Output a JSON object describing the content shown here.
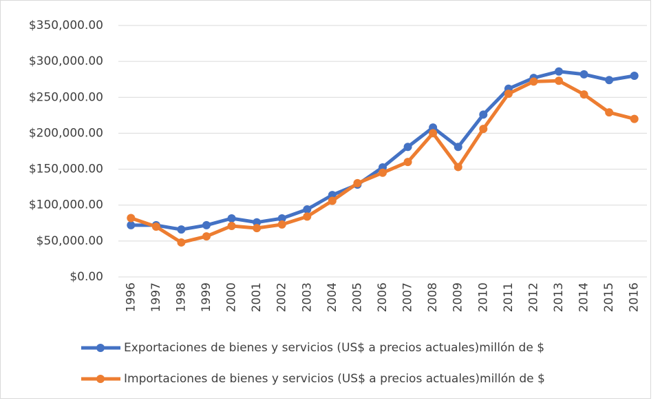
{
  "chart_data": {
    "type": "line",
    "categories": [
      "1996",
      "1997",
      "1998",
      "1999",
      "2000",
      "2001",
      "2002",
      "2003",
      "2004",
      "2005",
      "2006",
      "2007",
      "2008",
      "2009",
      "2010",
      "2011",
      "2012",
      "2013",
      "2014",
      "2015",
      "2016"
    ],
    "series": [
      {
        "name": "Exportaciones de bienes y servicios (US$ a precios actuales)millón de $",
        "color": "#4472c4",
        "values": [
          72000,
          72000,
          66000,
          72000,
          81500,
          76000,
          81500,
          94000,
          114000,
          128500,
          152500,
          181000,
          208000,
          181000,
          226000,
          262000,
          277000,
          286000,
          282000,
          274000,
          280000
        ]
      },
      {
        "name": "Importaciones de bienes y servicios (US$ a precios actuales)millón de $",
        "color": "#ed7d31",
        "values": [
          82000,
          70000,
          48000,
          56500,
          71000,
          68000,
          73000,
          84000,
          106000,
          130500,
          145000,
          160000,
          200000,
          153000,
          206000,
          255000,
          272000,
          273000,
          254000,
          229000,
          220000
        ]
      }
    ],
    "ylim": [
      0,
      350000
    ],
    "yticks": [
      {
        "value": 0,
        "label": "$0.00"
      },
      {
        "value": 50000,
        "label": "$50,000.00"
      },
      {
        "value": 100000,
        "label": "$100,000.00"
      },
      {
        "value": 150000,
        "label": "$150,000.00"
      },
      {
        "value": 200000,
        "label": "$200,000.00"
      },
      {
        "value": 250000,
        "label": "$250,000.00"
      },
      {
        "value": 300000,
        "label": "$300,000.00"
      },
      {
        "value": 350000,
        "label": "$350,000.00"
      }
    ],
    "grid": true,
    "legend": "bottom"
  }
}
